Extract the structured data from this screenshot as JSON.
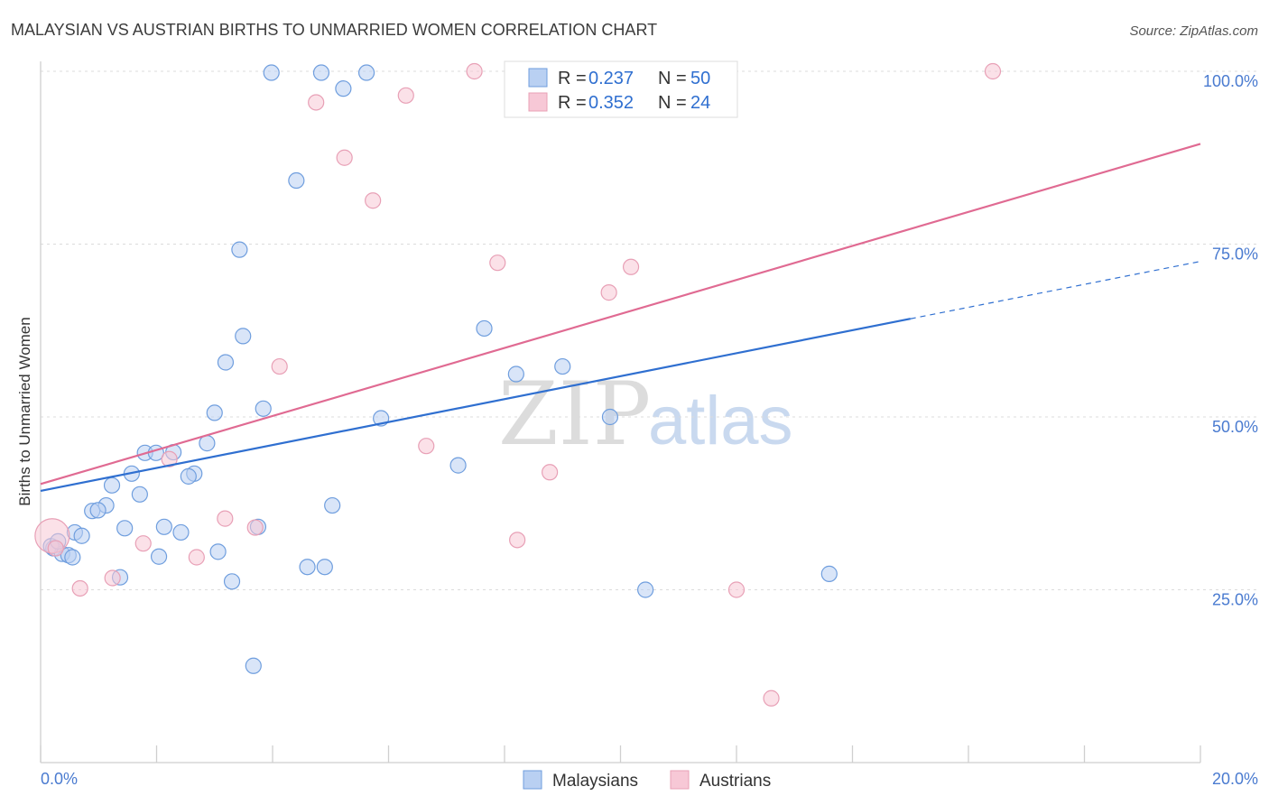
{
  "chart_data": {
    "type": "scatter",
    "title": "MALAYSIAN VS AUSTRIAN BIRTHS TO UNMARRIED WOMEN CORRELATION CHART",
    "source": "Source: ZipAtlas.com",
    "xlabel": "",
    "ylabel": "Births to Unmarried Women",
    "xlim": [
      0,
      20
    ],
    "ylim": [
      0,
      100
    ],
    "x_tick_labels": [
      "0.0%",
      "20.0%"
    ],
    "y_ticks": [
      25,
      50,
      75,
      100
    ],
    "y_tick_labels": [
      "25.0%",
      "50.0%",
      "75.0%",
      "100.0%"
    ],
    "watermark": {
      "zip": "ZIP",
      "atlas": "atlas"
    },
    "legend": {
      "entries": [
        {
          "r_label": "R = ",
          "r_value": "0.237",
          "n_label": "N = ",
          "n_value": "50"
        },
        {
          "r_label": "R = ",
          "r_value": "0.352",
          "n_label": "N = ",
          "n_value": "24"
        }
      ]
    },
    "series": [
      {
        "name": "Malaysians",
        "color": "#6f9ede",
        "fill": "#b9d0f2",
        "trend_color": "#2f6fd0",
        "trend": {
          "x0": 0,
          "y0": 39.3,
          "x1": 15.0,
          "y1": 64.2,
          "dash_x1": 20,
          "dash_y1": 72.5
        },
        "points": [
          [
            3.98,
            99.8
          ],
          [
            4.84,
            99.8
          ],
          [
            5.62,
            99.8
          ],
          [
            5.22,
            97.5
          ],
          [
            4.41,
            84.2
          ],
          [
            3.43,
            74.2
          ],
          [
            3.49,
            61.7
          ],
          [
            3.19,
            57.9
          ],
          [
            7.65,
            62.8
          ],
          [
            8.2,
            56.2
          ],
          [
            9.0,
            57.3
          ],
          [
            3.0,
            50.6
          ],
          [
            3.84,
            51.2
          ],
          [
            5.87,
            49.8
          ],
          [
            9.82,
            50.0
          ],
          [
            7.2,
            43.0
          ],
          [
            2.87,
            46.2
          ],
          [
            1.8,
            44.8
          ],
          [
            2.29,
            44.9
          ],
          [
            1.99,
            44.8
          ],
          [
            1.57,
            41.8
          ],
          [
            2.65,
            41.8
          ],
          [
            2.55,
            41.4
          ],
          [
            1.23,
            40.1
          ],
          [
            1.71,
            38.8
          ],
          [
            1.13,
            37.2
          ],
          [
            0.89,
            36.4
          ],
          [
            0.99,
            36.5
          ],
          [
            5.03,
            37.2
          ],
          [
            0.59,
            33.3
          ],
          [
            0.71,
            32.8
          ],
          [
            1.45,
            33.9
          ],
          [
            2.13,
            34.1
          ],
          [
            2.42,
            33.3
          ],
          [
            3.75,
            34.1
          ],
          [
            0.22,
            31.0
          ],
          [
            0.37,
            30.2
          ],
          [
            0.48,
            30.0
          ],
          [
            0.55,
            29.7
          ],
          [
            2.04,
            29.8
          ],
          [
            3.06,
            30.5
          ],
          [
            1.37,
            26.8
          ],
          [
            3.3,
            26.2
          ],
          [
            4.6,
            28.3
          ],
          [
            4.9,
            28.3
          ],
          [
            10.43,
            25.0
          ],
          [
            13.6,
            27.3
          ],
          [
            3.67,
            14.0
          ],
          [
            0.18,
            31.3
          ],
          [
            0.3,
            32.0
          ]
        ]
      },
      {
        "name": "Austrians",
        "color": "#e8a0b6",
        "fill": "#f7c8d6",
        "trend_color": "#e06a92",
        "trend": {
          "x0": 0,
          "y0": 40.3,
          "x1": 20,
          "y1": 89.5
        },
        "points": [
          [
            7.48,
            100.0
          ],
          [
            16.42,
            100.0
          ],
          [
            6.3,
            96.5
          ],
          [
            4.75,
            95.5
          ],
          [
            5.24,
            87.5
          ],
          [
            5.73,
            81.3
          ],
          [
            7.88,
            72.3
          ],
          [
            10.18,
            71.7
          ],
          [
            9.8,
            68.0
          ],
          [
            4.12,
            57.3
          ],
          [
            6.65,
            45.8
          ],
          [
            2.22,
            43.9
          ],
          [
            8.78,
            42.0
          ],
          [
            3.18,
            35.3
          ],
          [
            3.7,
            34.0
          ],
          [
            8.22,
            32.2
          ],
          [
            1.77,
            31.7
          ],
          [
            2.69,
            29.7
          ],
          [
            1.24,
            26.7
          ],
          [
            0.68,
            25.2
          ],
          [
            12.0,
            25.0
          ],
          [
            12.6,
            9.3
          ],
          [
            0.2,
            32.8
          ],
          [
            0.26,
            31.0
          ]
        ]
      }
    ]
  }
}
